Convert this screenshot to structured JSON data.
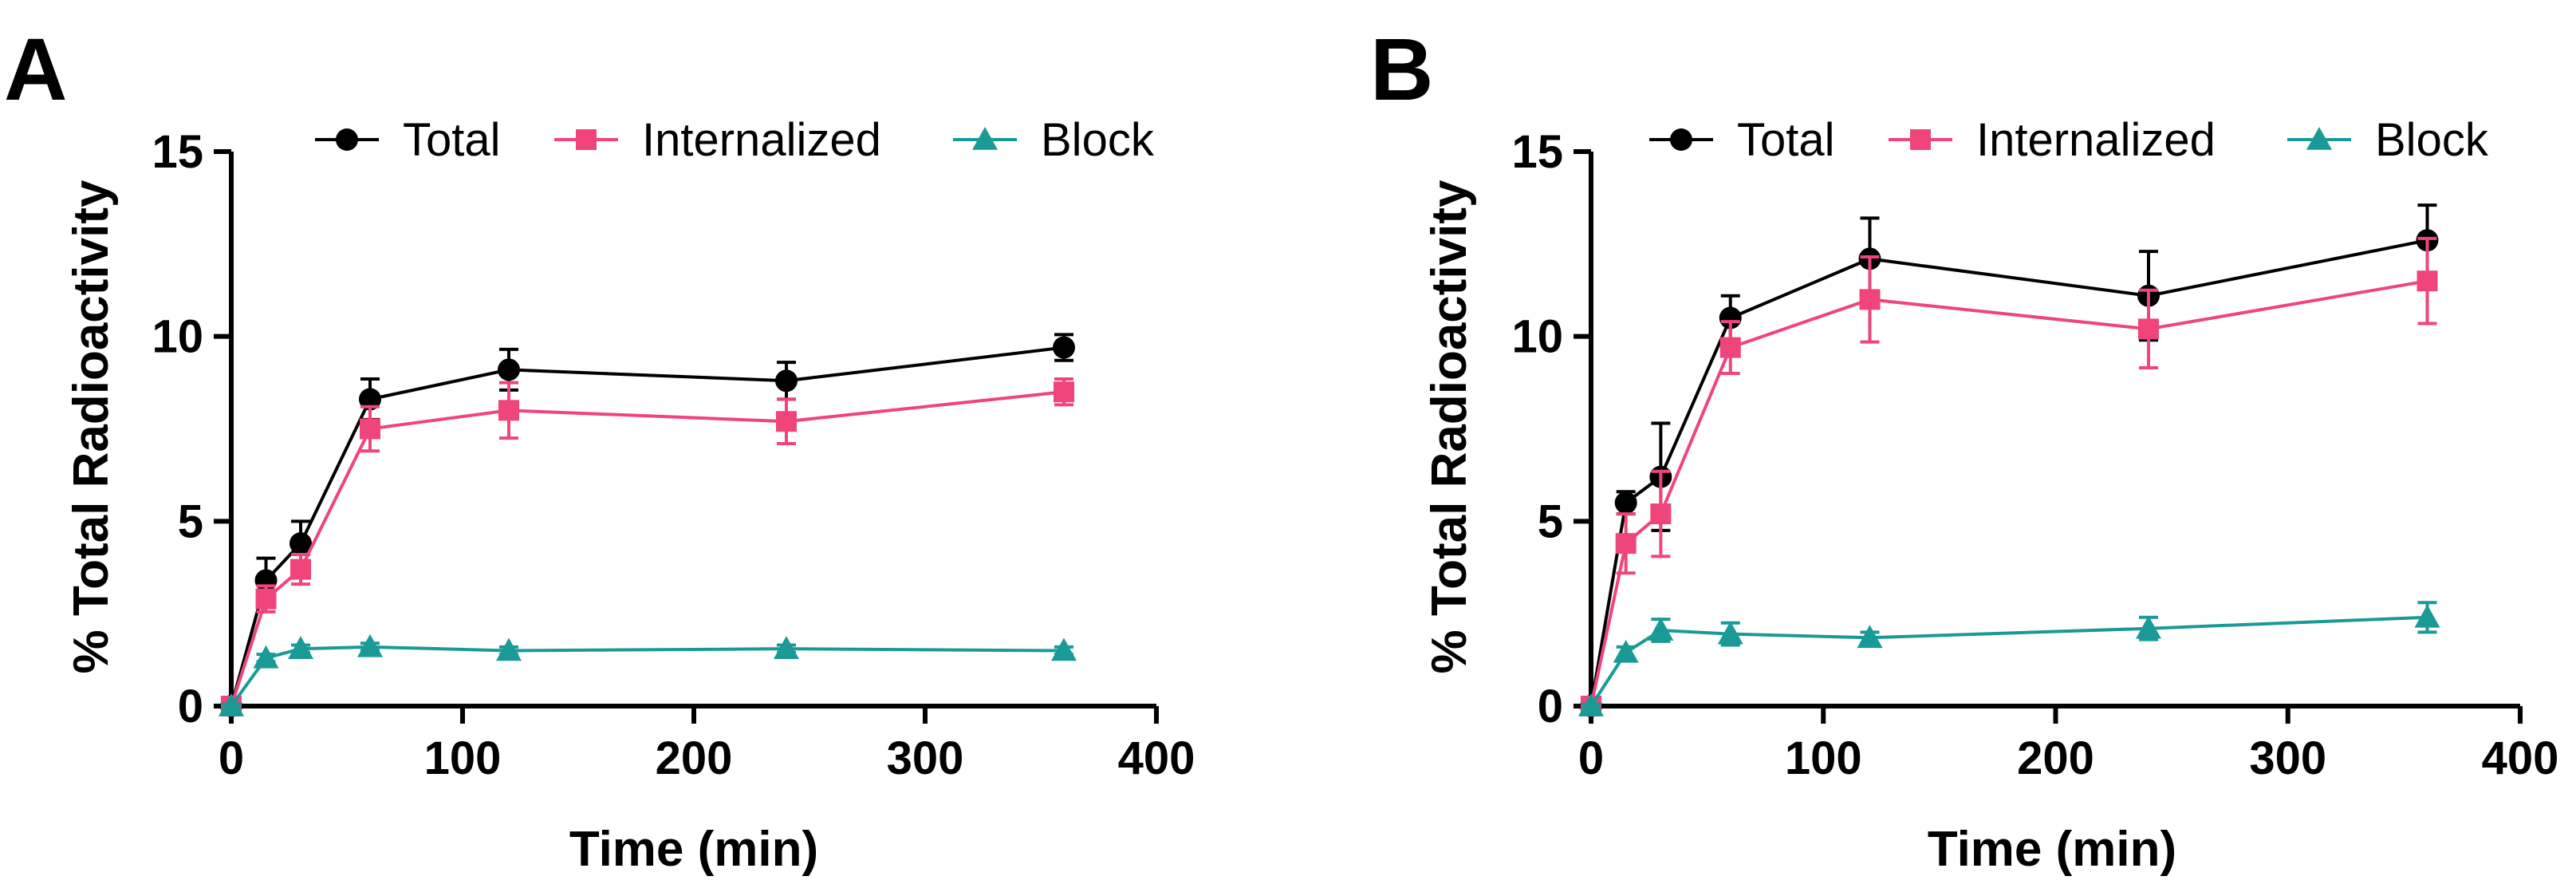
{
  "colors": {
    "axis": "#000000",
    "total": "#000000",
    "internalized": "#f0457a",
    "block": "#1a9a96",
    "background": "#ffffff"
  },
  "chart_data": [
    {
      "panel_label": "A",
      "type": "line",
      "title": "",
      "xlabel": "Time (min)",
      "ylabel": "% Total Radioactivity",
      "xlim": [
        0,
        400
      ],
      "ylim": [
        0,
        15
      ],
      "xticks": [
        "0",
        "100",
        "200",
        "300",
        "400"
      ],
      "yticks": [
        "0",
        "5",
        "10",
        "15"
      ],
      "legend": "top",
      "series": [
        {
          "name": "Total",
          "marker": "circle",
          "color_key": "total",
          "x": [
            0,
            15,
            30,
            60,
            120,
            240,
            360
          ],
          "y": [
            0,
            3.4,
            4.4,
            8.3,
            9.1,
            8.8,
            9.7
          ],
          "err": [
            0.1,
            0.6,
            0.6,
            0.55,
            0.55,
            0.5,
            0.35
          ]
        },
        {
          "name": "Internalized",
          "marker": "square",
          "color_key": "internalized",
          "x": [
            0,
            15,
            30,
            60,
            120,
            240,
            360
          ],
          "y": [
            0,
            2.9,
            3.7,
            7.5,
            8.0,
            7.7,
            8.5
          ],
          "err": [
            0.1,
            0.35,
            0.4,
            0.6,
            0.75,
            0.6,
            0.35
          ]
        },
        {
          "name": "Block",
          "marker": "triangle",
          "color_key": "block",
          "x": [
            0,
            15,
            30,
            60,
            120,
            240,
            360
          ],
          "y": [
            0,
            1.3,
            1.55,
            1.6,
            1.5,
            1.55,
            1.5
          ],
          "err": [
            0.05,
            0.1,
            0.1,
            0.1,
            0.1,
            0.1,
            0.1
          ]
        }
      ]
    },
    {
      "panel_label": "B",
      "type": "line",
      "title": "",
      "xlabel": "Time (min)",
      "ylabel": "% Total Radioactivity",
      "xlim": [
        0,
        400
      ],
      "ylim": [
        0,
        15
      ],
      "xticks": [
        "0",
        "100",
        "200",
        "300",
        "400"
      ],
      "yticks": [
        "0",
        "5",
        "10",
        "15"
      ],
      "legend": "top",
      "series": [
        {
          "name": "Total",
          "marker": "circle",
          "color_key": "total",
          "x": [
            0,
            15,
            30,
            60,
            120,
            240,
            360
          ],
          "y": [
            0,
            5.5,
            6.2,
            10.5,
            12.1,
            11.1,
            12.6
          ],
          "err": [
            0.1,
            0.3,
            1.45,
            0.6,
            1.1,
            1.2,
            0.95
          ]
        },
        {
          "name": "Internalized",
          "marker": "square",
          "color_key": "internalized",
          "x": [
            0,
            15,
            30,
            60,
            120,
            240,
            360
          ],
          "y": [
            0,
            4.4,
            5.2,
            9.7,
            11.0,
            10.2,
            11.5
          ],
          "err": [
            0.1,
            0.8,
            1.15,
            0.7,
            1.15,
            1.05,
            1.15
          ]
        },
        {
          "name": "Block",
          "marker": "triangle",
          "color_key": "block",
          "x": [
            0,
            15,
            30,
            60,
            120,
            240,
            360
          ],
          "y": [
            0,
            1.45,
            2.05,
            1.95,
            1.85,
            2.1,
            2.4
          ],
          "err": [
            0.05,
            0.15,
            0.3,
            0.3,
            0.15,
            0.3,
            0.4
          ]
        }
      ]
    }
  ]
}
